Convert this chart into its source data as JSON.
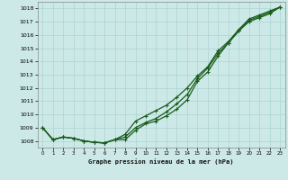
{
  "title": "Graphe pression niveau de la mer (hPa)",
  "bg_color": "#cce9e8",
  "grid_color": "#aad4d3",
  "line_color": "#1a5c1a",
  "xlim": [
    -0.5,
    23.5
  ],
  "ylim": [
    1007.5,
    1018.5
  ],
  "yticks": [
    1008,
    1009,
    1010,
    1011,
    1012,
    1013,
    1014,
    1015,
    1016,
    1017,
    1018
  ],
  "xticks": [
    0,
    1,
    2,
    3,
    4,
    5,
    6,
    7,
    8,
    9,
    10,
    11,
    12,
    13,
    14,
    15,
    16,
    17,
    18,
    19,
    20,
    21,
    22,
    23
  ],
  "line_top": [
    1009.0,
    1008.1,
    1008.3,
    1008.2,
    1008.0,
    1007.9,
    1007.85,
    1008.1,
    1008.5,
    1009.5,
    1009.9,
    1010.3,
    1010.7,
    1011.3,
    1012.0,
    1012.9,
    1013.6,
    1014.8,
    1015.5,
    1016.4,
    1017.2,
    1017.5,
    1017.8,
    1018.1
  ],
  "line_mid": [
    1009.0,
    1008.1,
    1008.3,
    1008.2,
    1008.0,
    1007.9,
    1007.85,
    1008.1,
    1008.3,
    1009.0,
    1009.4,
    1009.7,
    1010.2,
    1010.8,
    1011.5,
    1012.7,
    1013.5,
    1014.6,
    1015.4,
    1016.3,
    1017.1,
    1017.4,
    1017.7,
    1018.1
  ],
  "line_bot": [
    1009.0,
    1008.1,
    1008.3,
    1008.2,
    1008.0,
    1007.9,
    1007.85,
    1008.1,
    1008.1,
    1008.8,
    1009.3,
    1009.5,
    1009.9,
    1010.4,
    1011.1,
    1012.5,
    1013.2,
    1014.4,
    1015.4,
    1016.3,
    1017.0,
    1017.3,
    1017.6,
    1018.1
  ]
}
